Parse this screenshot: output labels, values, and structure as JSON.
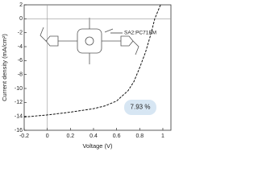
{
  "chart_data": {
    "type": "line",
    "x_label": "Voltage (V)",
    "y_label": "Current density (mA/cm²)",
    "annotation": "SA2:PC71BM",
    "efficiency": "7.93 %",
    "x": [
      -0.2,
      0,
      0.2,
      0.4,
      0.5,
      0.6,
      0.7,
      0.75,
      0.8,
      0.85,
      0.9,
      0.93,
      0.96,
      0.98
    ],
    "series": [
      {
        "name": "SA2:PC71BM",
        "color": "#111111",
        "values": [
          -14.1,
          -13.8,
          -13.4,
          -12.9,
          -12.5,
          -11.8,
          -10.3,
          -9,
          -7,
          -4.8,
          -2,
          0,
          1.2,
          2
        ]
      }
    ],
    "xlim": [
      -0.2,
      1.07
    ],
    "ylim": [
      -16,
      2
    ],
    "xticks": [
      -0.2,
      0,
      0.2,
      0.4,
      0.6,
      0.8,
      1
    ],
    "yticks": [
      2,
      0,
      -2,
      -4,
      -6,
      -8,
      -10,
      -12,
      -14,
      -16
    ]
  }
}
